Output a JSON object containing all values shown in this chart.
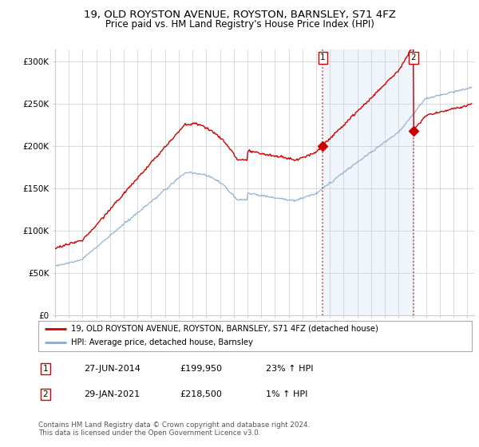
{
  "title": "19, OLD ROYSTON AVENUE, ROYSTON, BARNSLEY, S71 4FZ",
  "subtitle": "Price paid vs. HM Land Registry's House Price Index (HPI)",
  "ylabel_ticks": [
    "£0",
    "£50K",
    "£100K",
    "£150K",
    "£200K",
    "£250K",
    "£300K"
  ],
  "ytick_values": [
    0,
    50000,
    100000,
    150000,
    200000,
    250000,
    300000
  ],
  "ylim": [
    0,
    315000
  ],
  "sale1_x": 2014.49,
  "sale1_price": 199950,
  "sale2_x": 2021.08,
  "sale2_price": 218500,
  "red_line_color": "#cc0000",
  "blue_line_color": "#88aacc",
  "shade_color": "#ddeeff",
  "dashed_color": "#cc4444",
  "background_color": "#ffffff",
  "grid_color": "#cccccc",
  "legend1_text": "19, OLD ROYSTON AVENUE, ROYSTON, BARNSLEY, S71 4FZ (detached house)",
  "legend2_text": "HPI: Average price, detached house, Barnsley",
  "annotation1": [
    "1",
    "27-JUN-2014",
    "£199,950",
    "23% ↑ HPI"
  ],
  "annotation2": [
    "2",
    "29-JAN-2021",
    "£218,500",
    "1% ↑ HPI"
  ],
  "footer": "Contains HM Land Registry data © Crown copyright and database right 2024.\nThis data is licensed under the Open Government Licence v3.0.",
  "title_fontsize": 9.5,
  "subtitle_fontsize": 8.5
}
